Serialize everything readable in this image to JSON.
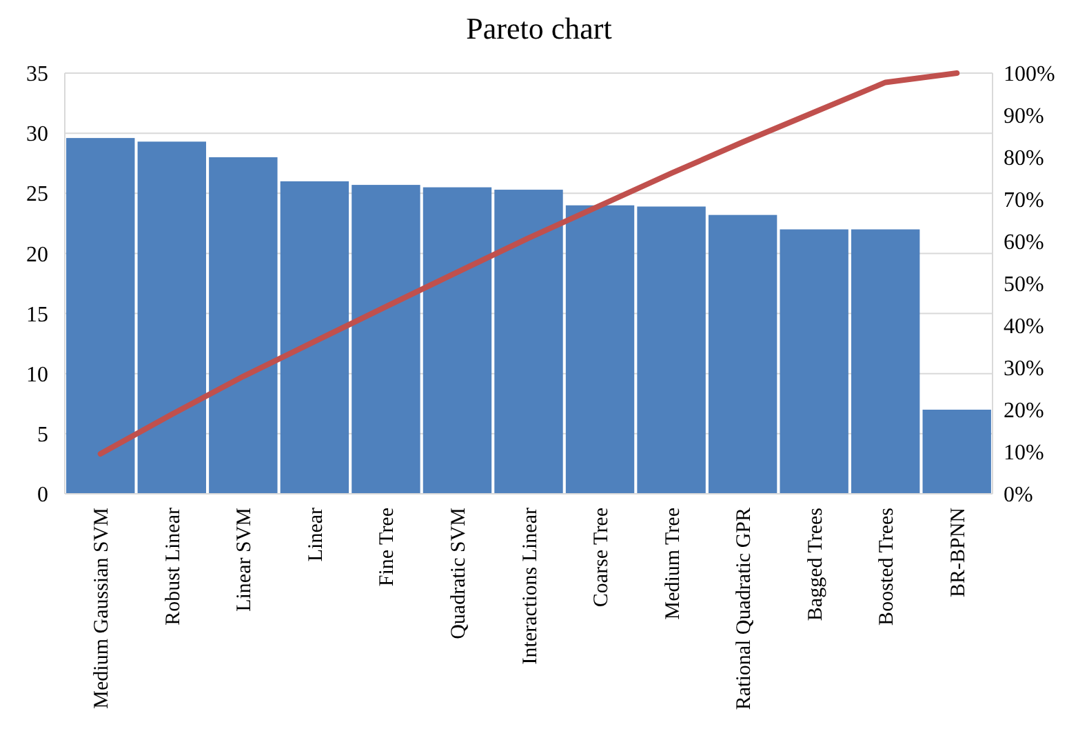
{
  "chart_data": {
    "type": "bar",
    "title": "Pareto chart",
    "categories": [
      "Medium Gaussian SVM",
      "Robust Linear",
      "Linear SVM",
      "Linear",
      "Fine Tree",
      "Quadratic SVM",
      "Interactions Linear",
      "Coarse Tree",
      "Medium Tree",
      "Rational Quadratic GPR",
      "Bagged Trees",
      "Boosted Trees",
      "BR-BPNN"
    ],
    "series": [
      {
        "color": "#4f81bd",
        "values": [
          29.6,
          29.3,
          28.0,
          26.0,
          25.7,
          25.5,
          25.3,
          24.0,
          23.9,
          23.2,
          22.0,
          22.0,
          7.0
        ]
      },
      {
        "type": "line",
        "axis": "y2",
        "color": "#c0504d",
        "values": [
          9.5,
          18.9,
          27.9,
          36.2,
          44.5,
          52.7,
          60.8,
          68.5,
          76.2,
          83.6,
          90.7,
          97.8,
          100
        ]
      }
    ],
    "ylim": [
      0,
      35
    ],
    "yticks": [
      0,
      5,
      10,
      15,
      20,
      25,
      30,
      35
    ],
    "y2lim": [
      0,
      100
    ],
    "y2ticks": [
      {
        "value": 0,
        "label": "0%"
      },
      {
        "value": 10,
        "label": "10%"
      },
      {
        "value": 20,
        "label": "20%"
      },
      {
        "value": 30,
        "label": "30%"
      },
      {
        "value": 40,
        "label": "40%"
      },
      {
        "value": 50,
        "label": "50%"
      },
      {
        "value": 60,
        "label": "60%"
      },
      {
        "value": 70,
        "label": "70%"
      },
      {
        "value": 80,
        "label": "80%"
      },
      {
        "value": 90,
        "label": "90%"
      },
      {
        "value": 100,
        "label": "100%"
      }
    ],
    "grid": "y",
    "marker": "none",
    "line_style": "solid"
  }
}
